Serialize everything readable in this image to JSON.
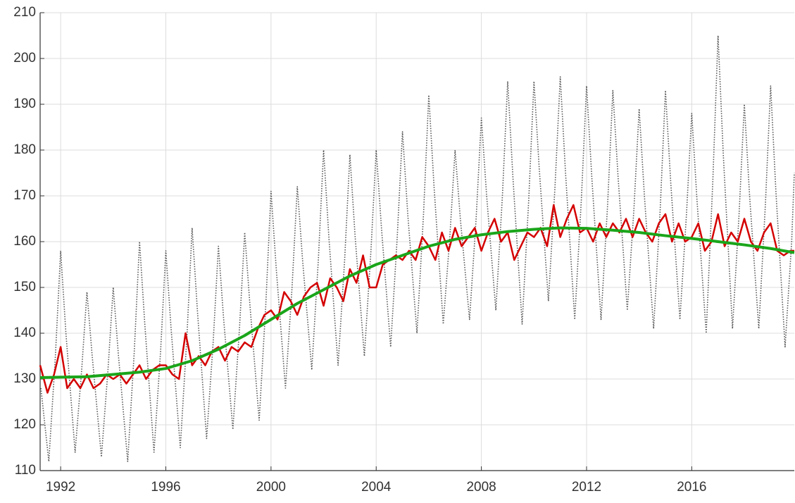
{
  "chart_data": {
    "type": "line",
    "xlim": [
      1991.22,
      2019.9
    ],
    "xticks": [
      1992,
      1996,
      2000,
      2004,
      2008,
      2012,
      2016
    ],
    "ylim": [
      110,
      210
    ],
    "yticks": [
      110,
      120,
      130,
      140,
      150,
      160,
      170,
      180,
      190,
      200,
      210
    ],
    "grid": true,
    "series": [
      {
        "color": "#555555",
        "style": "dotted",
        "x": [
          1991.25,
          1991.55,
          1991.8,
          1992,
          1992.2,
          1992.55,
          1992.8,
          1993,
          1993.2,
          1993.55,
          1993.8,
          1994,
          1994.2,
          1994.55,
          1994.8,
          1995,
          1995.2,
          1995.55,
          1995.8,
          1996,
          1996.2,
          1996.55,
          1996.8,
          1997,
          1997.2,
          1997.55,
          1997.8,
          1998,
          1998.2,
          1998.55,
          1998.8,
          1999,
          1999.2,
          1999.55,
          1999.8,
          2000,
          2000.2,
          2000.55,
          2000.8,
          2001,
          2001.2,
          2001.55,
          2001.8,
          2002,
          2002.2,
          2002.55,
          2002.8,
          2003,
          2003.2,
          2003.55,
          2003.8,
          2004,
          2004.2,
          2004.55,
          2004.8,
          2005,
          2005.2,
          2005.55,
          2005.8,
          2006,
          2006.2,
          2006.55,
          2006.8,
          2007,
          2007.2,
          2007.55,
          2007.8,
          2008,
          2008.2,
          2008.55,
          2008.8,
          2009,
          2009.2,
          2009.55,
          2009.8,
          2010,
          2010.2,
          2010.55,
          2010.8,
          2011,
          2011.2,
          2011.55,
          2011.8,
          2012,
          2012.2,
          2012.55,
          2012.8,
          2013,
          2013.2,
          2013.55,
          2013.8,
          2014,
          2014.2,
          2014.55,
          2014.8,
          2015,
          2015.2,
          2015.55,
          2015.8,
          2016,
          2016.2,
          2016.55,
          2016.8,
          2017,
          2017.2,
          2017.55,
          2017.8,
          2018,
          2018.2,
          2018.55,
          2018.8,
          2019,
          2019.2,
          2019.55,
          2019.8,
          2019.9
        ],
        "values": [
          128,
          112,
          135,
          158,
          140,
          114,
          132,
          149,
          135,
          113,
          132,
          150,
          135,
          112,
          136,
          160,
          142,
          114,
          136,
          158,
          141,
          115,
          139,
          163,
          145,
          117,
          138,
          159,
          143,
          119,
          141,
          162,
          146,
          121,
          146,
          171,
          154,
          128,
          150,
          172,
          156,
          132,
          156,
          180,
          161,
          133,
          156,
          179,
          161,
          135,
          158,
          180,
          163,
          137,
          161,
          184,
          166,
          140,
          166,
          192,
          172,
          142,
          161,
          180,
          165,
          143,
          165,
          187,
          170,
          145,
          170,
          195,
          174,
          142,
          169,
          195,
          176,
          147,
          172,
          196,
          175,
          143,
          169,
          194,
          174,
          143,
          168,
          193,
          174,
          145,
          167,
          189,
          170,
          141,
          167,
          193,
          173,
          143,
          166,
          188,
          169,
          140,
          173,
          205,
          179,
          141,
          166,
          190,
          170,
          141,
          168,
          194,
          171,
          137,
          160,
          175
        ]
      },
      {
        "color": "#d40000",
        "style": "solid",
        "x": [
          1991.22,
          1991.5,
          1991.75,
          1992,
          1992.25,
          1992.5,
          1992.75,
          1993,
          1993.25,
          1993.5,
          1993.75,
          1994,
          1994.25,
          1994.5,
          1994.75,
          1995,
          1995.25,
          1995.5,
          1995.75,
          1996,
          1996.25,
          1996.5,
          1996.75,
          1997,
          1997.25,
          1997.5,
          1997.75,
          1998,
          1998.25,
          1998.5,
          1998.75,
          1999,
          1999.25,
          1999.5,
          1999.75,
          2000,
          2000.25,
          2000.5,
          2000.75,
          2001,
          2001.25,
          2001.5,
          2001.75,
          2002,
          2002.25,
          2002.5,
          2002.75,
          2003,
          2003.25,
          2003.5,
          2003.75,
          2004,
          2004.25,
          2004.5,
          2004.75,
          2005,
          2005.25,
          2005.5,
          2005.75,
          2006,
          2006.25,
          2006.5,
          2006.75,
          2007,
          2007.25,
          2007.5,
          2007.75,
          2008,
          2008.25,
          2008.5,
          2008.75,
          2009,
          2009.25,
          2009.5,
          2009.75,
          2010,
          2010.25,
          2010.5,
          2010.75,
          2011,
          2011.25,
          2011.5,
          2011.75,
          2012,
          2012.25,
          2012.5,
          2012.75,
          2013,
          2013.25,
          2013.5,
          2013.75,
          2014,
          2014.25,
          2014.5,
          2014.75,
          2015,
          2015.25,
          2015.5,
          2015.75,
          2016,
          2016.25,
          2016.5,
          2016.75,
          2017,
          2017.25,
          2017.5,
          2017.75,
          2018,
          2018.25,
          2018.5,
          2018.75,
          2019,
          2019.25,
          2019.5,
          2019.75,
          2019.9
        ],
        "values": [
          133,
          127,
          131,
          137,
          128,
          130,
          128,
          131,
          128,
          129,
          131,
          130,
          131,
          129,
          131,
          133,
          130,
          132,
          133,
          133,
          131,
          130,
          140,
          133,
          135,
          133,
          136,
          137,
          134,
          137,
          136,
          138,
          137,
          141,
          144,
          145,
          143,
          149,
          147,
          144,
          148,
          150,
          151,
          146,
          152,
          150,
          147,
          154,
          151,
          157,
          150,
          150,
          155,
          156,
          157,
          156,
          158,
          156,
          161,
          159,
          156,
          162,
          158,
          163,
          159,
          161,
          163,
          158,
          162,
          165,
          160,
          162,
          156,
          159,
          162,
          161,
          163,
          159,
          168,
          161,
          165,
          168,
          162,
          163,
          160,
          164,
          161,
          164,
          162,
          165,
          161,
          165,
          162,
          160,
          164,
          166,
          160,
          164,
          160,
          161,
          164,
          158,
          160,
          166,
          159,
          162,
          160,
          165,
          160,
          158,
          162,
          164,
          158,
          157,
          158,
          158
        ]
      },
      {
        "color": "#1aa51a",
        "style": "solid",
        "x": [
          1991.22,
          1992,
          1993,
          1994,
          1995,
          1996,
          1997,
          1998,
          1999,
          2000,
          2001,
          2002,
          2003,
          2004,
          2005,
          2006,
          2007,
          2008,
          2009,
          2010,
          2011,
          2012,
          2013,
          2014,
          2015,
          2016,
          2017,
          2018,
          2019,
          2019.9
        ],
        "values": [
          130.3,
          130.4,
          130.5,
          131,
          131.5,
          132.3,
          134,
          136.5,
          139.5,
          143,
          146.5,
          149.5,
          152.5,
          155,
          157,
          159,
          160.5,
          161.5,
          162.2,
          162.7,
          163,
          162.9,
          162.5,
          162,
          161.3,
          160.7,
          160,
          159.3,
          158.5,
          157.6
        ]
      }
    ]
  }
}
